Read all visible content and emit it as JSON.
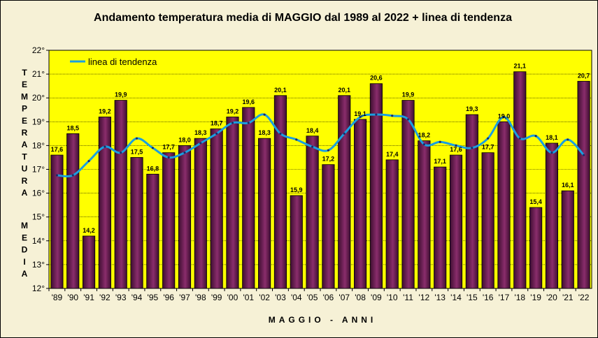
{
  "chart_data": {
    "type": "bar",
    "title": "Andamento temperatura media di MAGGIO dal 1989 al 2022 + linea di tendenza",
    "xlabel": "MAGGIO - ANNI",
    "ylabel": "TEMPERATURA MEDIA",
    "ylim": [
      12,
      22
    ],
    "yticks": [
      "12°",
      "13°",
      "14°",
      "15°",
      "16°",
      "17°",
      "18°",
      "19°",
      "20°",
      "21°",
      "22°"
    ],
    "categories": [
      "'89",
      "'90",
      "'91",
      "'92",
      "'93",
      "'94",
      "'95",
      "'96",
      "'97",
      "'98",
      "'99",
      "'00",
      "'01",
      "'02",
      "'03",
      "'04",
      "'05",
      "'06",
      "'07",
      "'08",
      "'09",
      "'10",
      "'11",
      "'12",
      "'13",
      "'14",
      "'15",
      "'16",
      "'17",
      "'18",
      "'19",
      "'20",
      "'21",
      "'22"
    ],
    "values": [
      17.6,
      18.5,
      14.2,
      19.2,
      19.9,
      17.5,
      16.8,
      17.7,
      18.0,
      18.3,
      18.7,
      19.2,
      19.6,
      18.3,
      20.1,
      15.9,
      18.4,
      17.2,
      20.1,
      19.1,
      20.6,
      17.4,
      19.9,
      18.2,
      17.1,
      17.6,
      19.3,
      17.7,
      19.0,
      21.1,
      15.4,
      18.1,
      16.1,
      20.7
    ],
    "value_labels": [
      "17,6",
      "18,5",
      "14,2",
      "19,2",
      "19,9",
      "17,5",
      "16,8",
      "17,7",
      "18,0",
      "18,3",
      "18,7",
      "19,2",
      "19,6",
      "18,3",
      "20,1",
      "15,9",
      "18,4",
      "17,2",
      "20,1",
      "19,1",
      "20,6",
      "17,4",
      "19,9",
      "18,2",
      "17,1",
      "17,6",
      "19,3",
      "17,7",
      "19,0",
      "21,1",
      "15,4",
      "18,1",
      "16,1",
      "20,7"
    ],
    "trend": {
      "name": "linea di tendenza",
      "values": [
        16.75,
        16.75,
        17.35,
        17.95,
        17.7,
        18.3,
        17.9,
        17.5,
        17.7,
        18.1,
        18.5,
        18.95,
        18.95,
        19.3,
        18.5,
        18.25,
        17.95,
        17.8,
        18.5,
        19.2,
        19.3,
        19.25,
        19.1,
        18.05,
        18.15,
        18.0,
        17.9,
        18.3,
        19.2,
        18.3,
        18.4,
        17.7,
        18.25,
        17.6
      ]
    },
    "grid": true,
    "legend": "top-left",
    "colors": {
      "plot_bg": "#ffff00",
      "outer_bg": "#f6f1d6",
      "bar_dark": "#3e0e30",
      "bar_light": "#8a2d6c",
      "trend": "#1a9fe0"
    }
  }
}
